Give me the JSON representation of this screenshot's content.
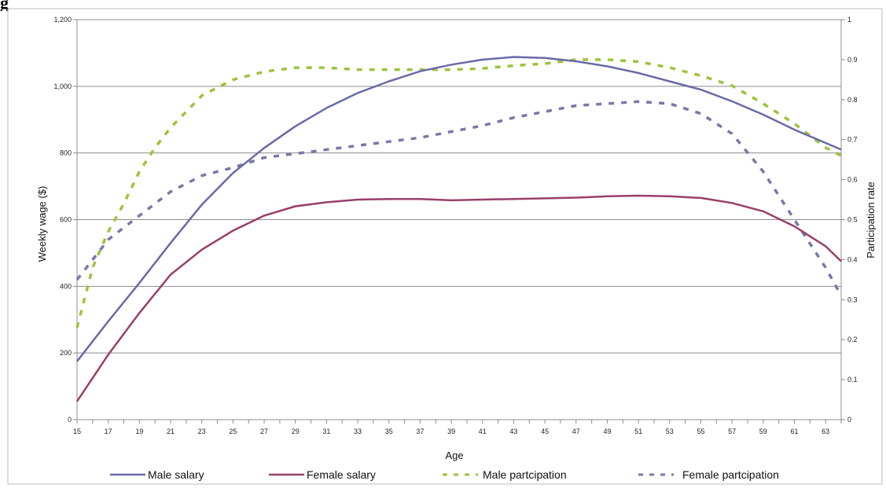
{
  "figure": {
    "title_fragment": "g"
  },
  "chart_data": {
    "type": "line",
    "xlabel": "Age",
    "ylabel": "Weekly wage ($)",
    "y2label": "Participation rate",
    "x_ticks": [
      "15",
      "17",
      "19",
      "21",
      "23",
      "25",
      "27",
      "29",
      "31",
      "33",
      "35",
      "37",
      "39",
      "41",
      "43",
      "45",
      "47",
      "49",
      "51",
      "53",
      "55",
      "57",
      "59",
      "61",
      "63"
    ],
    "xlim": [
      15,
      64
    ],
    "ylim": [
      0,
      1200
    ],
    "y_ticks": [
      "0",
      "200",
      "400",
      "600",
      "800",
      "1,000",
      "1,200"
    ],
    "y_tick_values": [
      0,
      200,
      400,
      600,
      800,
      1000,
      1200
    ],
    "y2lim": [
      0,
      1
    ],
    "y2_ticks": [
      "0",
      "0.1",
      "0.2",
      "0.3",
      "0.4",
      "0.5",
      "0.6",
      "0.7",
      "0.8",
      "0.9",
      "1"
    ],
    "y2_tick_values": [
      0,
      0.1,
      0.2,
      0.3,
      0.4,
      0.5,
      0.6,
      0.7,
      0.8,
      0.9,
      1
    ],
    "grid": "horizontal",
    "legend_position": "bottom",
    "series": [
      {
        "name": "Male salary",
        "axis": "left",
        "style": "solid",
        "color": "#6a6aa8",
        "x": [
          15,
          17,
          19,
          21,
          23,
          25,
          27,
          29,
          31,
          33,
          35,
          37,
          39,
          41,
          43,
          45,
          47,
          49,
          51,
          53,
          55,
          57,
          59,
          61,
          63,
          64
        ],
        "values": [
          175,
          295,
          410,
          530,
          645,
          740,
          815,
          880,
          935,
          980,
          1015,
          1045,
          1065,
          1080,
          1088,
          1085,
          1075,
          1060,
          1040,
          1015,
          990,
          955,
          915,
          870,
          830,
          810
        ]
      },
      {
        "name": "Female salary",
        "axis": "left",
        "style": "solid",
        "color": "#993f6a",
        "x": [
          15,
          17,
          19,
          21,
          23,
          25,
          27,
          29,
          31,
          33,
          35,
          37,
          39,
          41,
          43,
          45,
          47,
          49,
          51,
          53,
          55,
          57,
          59,
          61,
          63,
          64
        ],
        "values": [
          55,
          195,
          320,
          435,
          510,
          567,
          612,
          640,
          652,
          660,
          662,
          662,
          658,
          660,
          662,
          664,
          666,
          670,
          672,
          670,
          665,
          650,
          625,
          580,
          520,
          475
        ]
      },
      {
        "name": "Male partcipation",
        "axis": "right",
        "style": "dashed",
        "color": "#9bc43b",
        "x": [
          15,
          16,
          17,
          18,
          19,
          20,
          21,
          22,
          23,
          24,
          25,
          27,
          29,
          31,
          33,
          35,
          37,
          39,
          41,
          43,
          45,
          47,
          49,
          51,
          53,
          55,
          57,
          59,
          61,
          63,
          64
        ],
        "values": [
          0.23,
          0.38,
          0.47,
          0.54,
          0.62,
          0.68,
          0.73,
          0.77,
          0.81,
          0.83,
          0.85,
          0.87,
          0.88,
          0.88,
          0.875,
          0.875,
          0.875,
          0.875,
          0.878,
          0.885,
          0.89,
          0.9,
          0.9,
          0.895,
          0.88,
          0.86,
          0.835,
          0.79,
          0.74,
          0.68,
          0.66
        ]
      },
      {
        "name": "Female partcipation",
        "axis": "right",
        "style": "dashed",
        "color": "#7878ab",
        "x": [
          15,
          17,
          19,
          21,
          23,
          25,
          27,
          29,
          31,
          33,
          35,
          37,
          39,
          41,
          43,
          45,
          47,
          49,
          51,
          53,
          55,
          57,
          59,
          61,
          63,
          64
        ],
        "values": [
          0.35,
          0.45,
          0.51,
          0.57,
          0.61,
          0.63,
          0.655,
          0.665,
          0.675,
          0.685,
          0.695,
          0.705,
          0.72,
          0.735,
          0.755,
          0.77,
          0.785,
          0.79,
          0.795,
          0.79,
          0.765,
          0.715,
          0.62,
          0.5,
          0.38,
          0.31
        ]
      }
    ]
  }
}
